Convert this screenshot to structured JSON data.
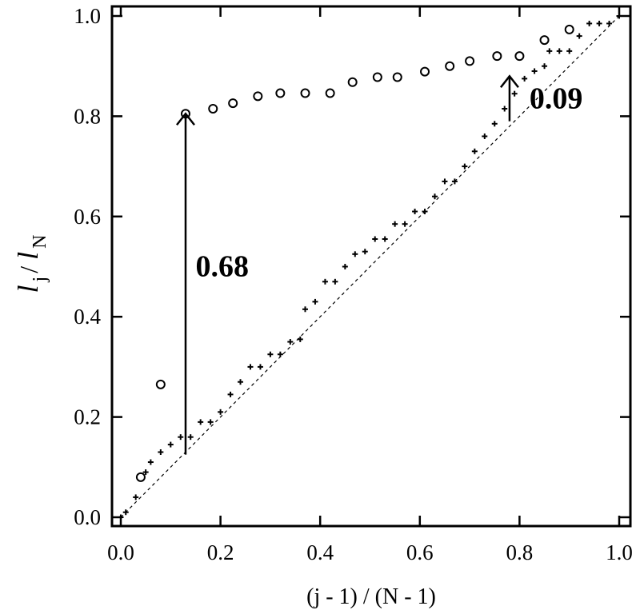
{
  "chart_data": {
    "type": "scatter",
    "xlabel": "(j - 1) / (N - 1)",
    "ylabel": {
      "main": "l",
      "sub_j": "j",
      "slash": " / ",
      "main2": "l",
      "sub_n": "N"
    },
    "xlim": [
      0,
      1
    ],
    "ylim": [
      0,
      1
    ],
    "x_ticks": [
      0.0,
      0.2,
      0.4,
      0.6,
      0.8,
      1.0
    ],
    "y_ticks": [
      0.0,
      0.2,
      0.4,
      0.6,
      0.8,
      1.0
    ],
    "x_tick_labels": [
      "0.0",
      "0.2",
      "0.4",
      "0.6",
      "0.8",
      "1.0"
    ],
    "y_tick_labels": [
      "0.0",
      "0.2",
      "0.4",
      "0.6",
      "0.8",
      "1.0"
    ],
    "grid": false,
    "diagonal": {
      "from": [
        0,
        0
      ],
      "to": [
        1,
        1
      ],
      "style": "dashed"
    },
    "series": [
      {
        "marker": "open-circle",
        "points": [
          [
            0.04,
            0.08
          ],
          [
            0.08,
            0.265
          ],
          [
            0.13,
            0.805
          ],
          [
            0.185,
            0.815
          ],
          [
            0.225,
            0.826
          ],
          [
            0.275,
            0.84
          ],
          [
            0.32,
            0.846
          ],
          [
            0.37,
            0.846
          ],
          [
            0.42,
            0.846
          ],
          [
            0.465,
            0.868
          ],
          [
            0.515,
            0.878
          ],
          [
            0.555,
            0.878
          ],
          [
            0.61,
            0.889
          ],
          [
            0.66,
            0.9
          ],
          [
            0.7,
            0.91
          ],
          [
            0.755,
            0.92
          ],
          [
            0.8,
            0.92
          ],
          [
            0.85,
            0.952
          ],
          [
            0.9,
            0.973
          ]
        ]
      },
      {
        "marker": "plus",
        "points": [
          [
            0.0,
            0.0
          ],
          [
            0.01,
            0.01
          ],
          [
            0.03,
            0.04
          ],
          [
            0.05,
            0.09
          ],
          [
            0.06,
            0.11
          ],
          [
            0.08,
            0.13
          ],
          [
            0.1,
            0.145
          ],
          [
            0.12,
            0.16
          ],
          [
            0.14,
            0.16
          ],
          [
            0.16,
            0.19
          ],
          [
            0.18,
            0.19
          ],
          [
            0.2,
            0.21
          ],
          [
            0.22,
            0.245
          ],
          [
            0.24,
            0.27
          ],
          [
            0.26,
            0.3
          ],
          [
            0.28,
            0.3
          ],
          [
            0.3,
            0.325
          ],
          [
            0.32,
            0.325
          ],
          [
            0.34,
            0.35
          ],
          [
            0.36,
            0.355
          ],
          [
            0.37,
            0.415
          ],
          [
            0.39,
            0.43
          ],
          [
            0.41,
            0.47
          ],
          [
            0.43,
            0.47
          ],
          [
            0.45,
            0.5
          ],
          [
            0.47,
            0.525
          ],
          [
            0.49,
            0.53
          ],
          [
            0.51,
            0.555
          ],
          [
            0.53,
            0.555
          ],
          [
            0.55,
            0.585
          ],
          [
            0.57,
            0.585
          ],
          [
            0.59,
            0.61
          ],
          [
            0.61,
            0.61
          ],
          [
            0.63,
            0.64
          ],
          [
            0.65,
            0.67
          ],
          [
            0.67,
            0.67
          ],
          [
            0.69,
            0.7
          ],
          [
            0.71,
            0.73
          ],
          [
            0.73,
            0.76
          ],
          [
            0.75,
            0.785
          ],
          [
            0.77,
            0.815
          ],
          [
            0.79,
            0.845
          ],
          [
            0.81,
            0.875
          ],
          [
            0.83,
            0.89
          ],
          [
            0.85,
            0.9
          ],
          [
            0.86,
            0.93
          ],
          [
            0.88,
            0.93
          ],
          [
            0.9,
            0.93
          ],
          [
            0.92,
            0.96
          ],
          [
            0.94,
            0.985
          ],
          [
            0.96,
            0.985
          ],
          [
            0.98,
            0.985
          ],
          [
            1.0,
            1.0
          ]
        ]
      }
    ],
    "annotations": [
      {
        "text": "0.68",
        "arrow_x": 0.13,
        "arrow_from": 0.125,
        "arrow_to": 0.805,
        "label_x": 0.15,
        "label_y": 0.5
      },
      {
        "text": "0.09",
        "arrow_x": 0.78,
        "arrow_from": 0.79,
        "arrow_to": 0.88,
        "label_x": 0.82,
        "label_y": 0.835
      }
    ]
  }
}
